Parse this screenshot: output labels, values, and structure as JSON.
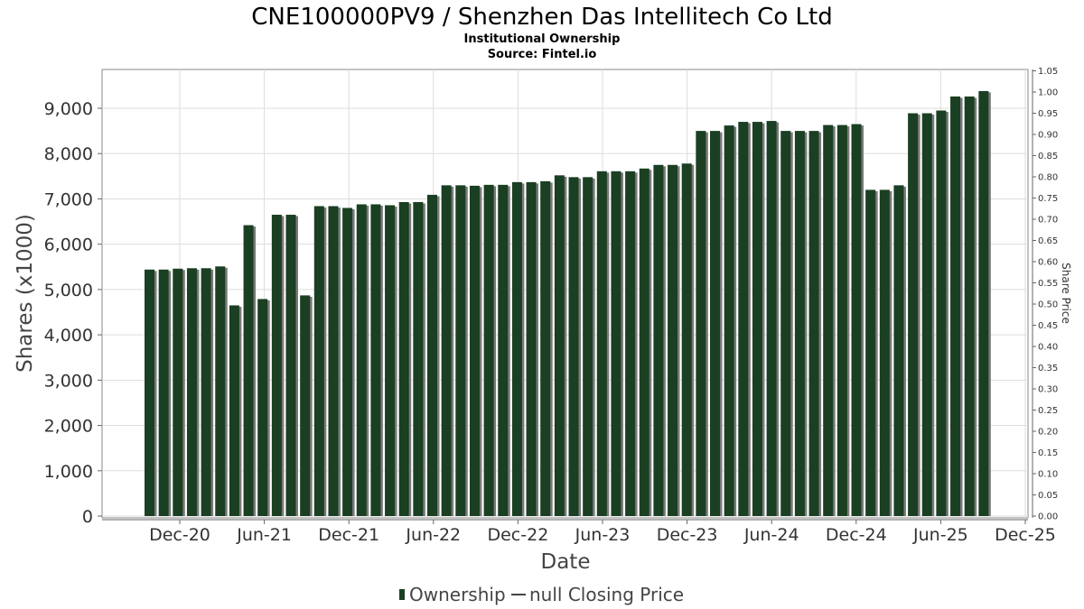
{
  "chart_data": {
    "type": "bar",
    "title": "CNE100000PV9 / Shenzhen Das Intellitech Co Ltd",
    "subtitle": "Institutional Ownership",
    "source": "Source: Fintel.io",
    "xlabel": "Date",
    "ylabel": "Shares (x1000)",
    "y2label": "Share Price",
    "ylim": [
      0,
      9900
    ],
    "y2lim": [
      0,
      1.05
    ],
    "y_ticks": [
      "0",
      "1,000",
      "2,000",
      "3,000",
      "4,000",
      "5,000",
      "6,000",
      "7,000",
      "8,000",
      "9,000"
    ],
    "y2_ticks": [
      "0.00",
      "0.05",
      "0.10",
      "0.15",
      "0.20",
      "0.25",
      "0.30",
      "0.35",
      "0.40",
      "0.45",
      "0.50",
      "0.55",
      "0.60",
      "0.65",
      "0.70",
      "0.75",
      "0.80",
      "0.85",
      "0.90",
      "0.95",
      "1.00",
      "1.05"
    ],
    "x_ticks": [
      "Dec-20",
      "Jun-21",
      "Dec-21",
      "Jun-22",
      "Dec-22",
      "Jun-23",
      "Dec-23",
      "Jun-24",
      "Dec-24",
      "Jun-25",
      "Dec-25"
    ],
    "series": [
      {
        "name": "Ownership",
        "color": "#1a3f22",
        "values": [
          5440,
          5440,
          5460,
          5470,
          5470,
          5510,
          4650,
          6420,
          4790,
          6650,
          6650,
          4870,
          6840,
          6840,
          6800,
          6880,
          6880,
          6860,
          6930,
          6930,
          7090,
          7300,
          7300,
          7290,
          7310,
          7310,
          7370,
          7370,
          7390,
          7520,
          7480,
          7480,
          7610,
          7610,
          7610,
          7670,
          7750,
          7750,
          7780,
          8500,
          8500,
          8620,
          8700,
          8700,
          8720,
          8500,
          8500,
          8500,
          8630,
          8630,
          8650,
          7200,
          7200,
          7300,
          8890,
          8890,
          8950,
          9260,
          9260,
          9380
        ]
      }
    ],
    "legend": {
      "position": "bottom",
      "ownership_label": "Ownership",
      "price_label": "null Closing Price"
    },
    "grid": true
  }
}
